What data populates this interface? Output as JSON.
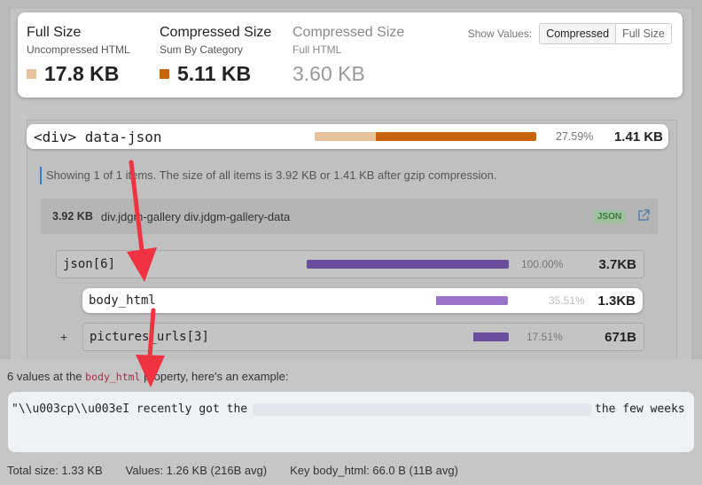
{
  "summary": {
    "full": {
      "title": "Full Size",
      "subtitle": "Uncompressed HTML",
      "value": "17.8 KB",
      "color": "#e8c39c"
    },
    "compressed": {
      "title": "Compressed Size",
      "subtitle": "Sum By Category",
      "value": "5.11 KB",
      "color": "#c8640e"
    },
    "compressed_full": {
      "title": "Compressed Size",
      "subtitle": "Full HTML",
      "value": "3.60 KB"
    },
    "show_values": {
      "label": "Show Values:",
      "options": [
        "Compressed",
        "Full Size"
      ],
      "selected": "Compressed"
    }
  },
  "main_row": {
    "name": "<div> data-json",
    "percent": "27.59%",
    "size": "1.41 KB",
    "bar_fraction": 0.2759,
    "bar_colors": {
      "light": "#e8c39c",
      "dark": "#c8640e"
    }
  },
  "note": "Showing 1 of 1 items. The size of all items is 3.92 KB or 1.41 KB after gzip compression.",
  "item": {
    "size": "3.92 KB",
    "path": "div.jdgm-gallery div.jdgm-gallery-data",
    "badge": "JSON",
    "icon": "external-link-icon"
  },
  "tree": [
    {
      "name": "json[6]",
      "percent": "100.00%",
      "size": "3.7KB",
      "fraction": 1.0,
      "expand": ""
    },
    {
      "name": "body_html",
      "percent": "35.51%",
      "size": "1.3KB",
      "fraction": 0.3551,
      "expand": ""
    },
    {
      "name": "pictures_urls[3]",
      "percent": "17.51%",
      "size": "671B",
      "fraction": 0.1751,
      "expand": "+"
    }
  ],
  "bottom": {
    "title_prefix": "6 values at the ",
    "property": "body_html",
    "title_suffix": " property, here's an example:",
    "example_start": "\"\\\\u003cp\\\\u003eI recently got the",
    "example_end": "the few weeks",
    "total_size": "Total size: 1.33 KB",
    "values": "Values: 1.26 KB (216B avg)",
    "key": "Key body_html: 66.0 B (11B avg)"
  },
  "accent_colors": {
    "purple": "#6b4d9e",
    "purple_light": "#9a72c9",
    "annotation": "#ef3340"
  }
}
